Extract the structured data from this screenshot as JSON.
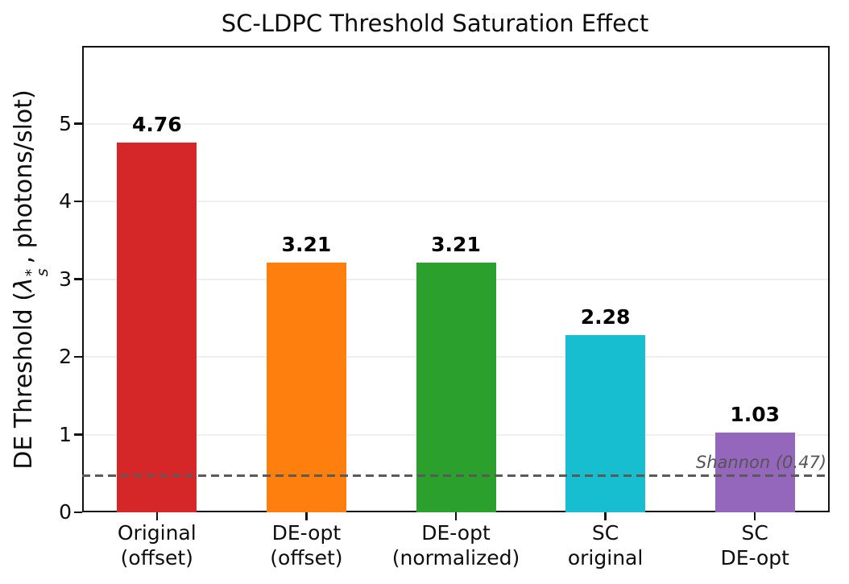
{
  "chart_data": {
    "type": "bar",
    "title": "SC-LDPC Threshold Saturation Effect",
    "categories": [
      "Original\n(offset)",
      "DE-opt\n(offset)",
      "DE-opt\n(normalized)",
      "SC\noriginal",
      "SC\nDE-opt"
    ],
    "category_names": [
      "original-offset",
      "de-opt-offset",
      "de-opt-normalized",
      "sc-original",
      "sc-de-opt"
    ],
    "values": [
      4.76,
      3.21,
      3.21,
      2.28,
      1.03
    ],
    "value_labels": [
      "4.76",
      "3.21",
      "3.21",
      "2.28",
      "1.03"
    ],
    "bar_colors": [
      "#d62728",
      "#ff7f0e",
      "#2ca02c",
      "#17becf",
      "#9467bd"
    ],
    "xlabel": "",
    "ylabel": {
      "pre": "DE Threshold (",
      "symbol": "λ",
      "sup": "*",
      "sub": "s",
      "post": ", photons/slot)"
    },
    "ylim": [
      0,
      6
    ],
    "yticks": [
      0,
      1,
      2,
      3,
      4,
      5
    ],
    "grid": "horizontal",
    "legend": "none",
    "reference_line": {
      "value": 0.47,
      "label": "Shannon (0.47)",
      "style": "dashed",
      "color": "#5a5a5a"
    },
    "colors": {
      "grid": "#efefef",
      "spine": "#111111",
      "text": "#0d0d0d",
      "ref_label": "#555555",
      "background": "#ffffff"
    }
  }
}
